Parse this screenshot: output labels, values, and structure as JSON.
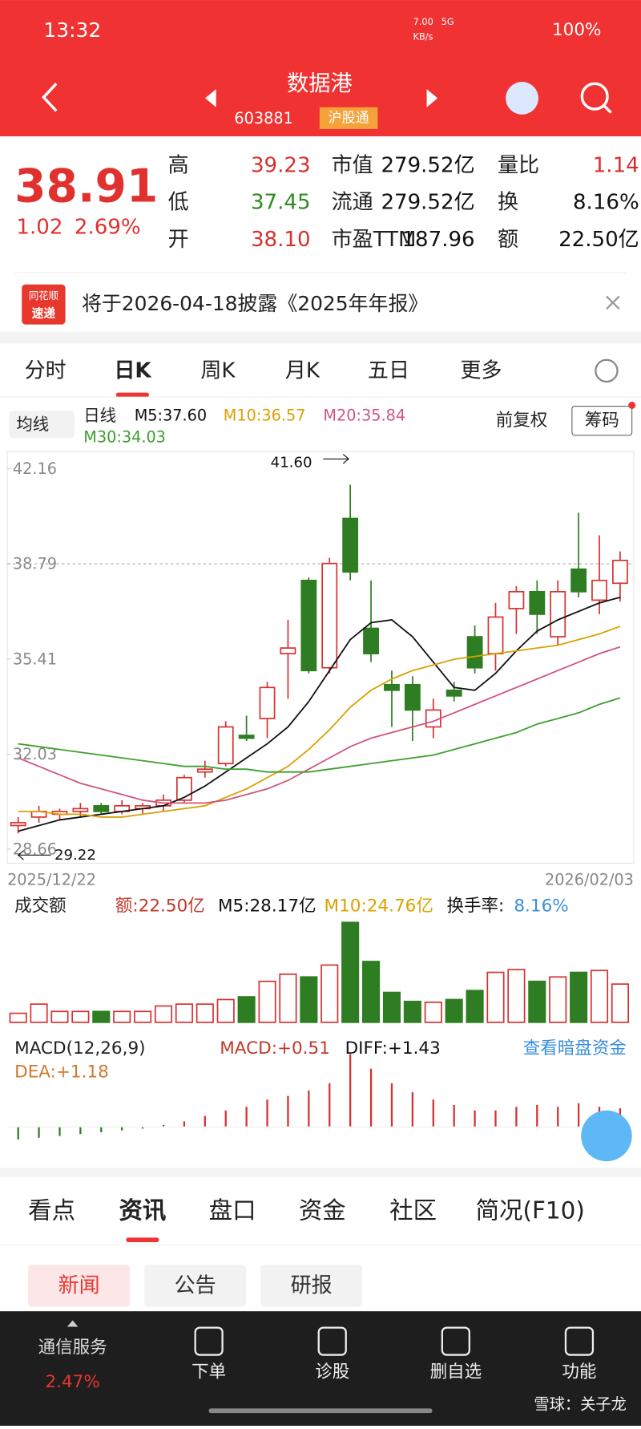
{
  "status_bar": {
    "time": "13:32",
    "speed": "7.00",
    "speed_unit": "KB/s",
    "network": "5G",
    "battery": "100%"
  },
  "header": {
    "title": "数据港",
    "code": "603881",
    "badge": "沪股通"
  },
  "quote": {
    "price": "38.91",
    "change": "1.02",
    "change_pct": "2.69%",
    "stats": [
      [
        {
          "label": "高",
          "value": "39.23",
          "tone": "up"
        },
        {
          "label": "低",
          "value": "37.45",
          "tone": "down"
        },
        {
          "label": "开",
          "value": "38.10",
          "tone": "up"
        }
      ],
      [
        {
          "label": "市值",
          "value": "279.52亿",
          "tone": "flat"
        },
        {
          "label": "流通",
          "value": "279.52亿",
          "tone": "flat"
        },
        {
          "label": "市盈TTM",
          "value": "187.96",
          "tone": "flat"
        }
      ],
      [
        {
          "label": "量比",
          "value": "1.14",
          "tone": "up"
        },
        {
          "label": "换",
          "value": "8.16%",
          "tone": "flat"
        },
        {
          "label": "额",
          "value": "22.50亿",
          "tone": "flat"
        }
      ]
    ]
  },
  "notice": {
    "logo_top": "同花顺",
    "logo_bottom": "速递",
    "text": "将于2026-04-18披露《2025年年报》"
  },
  "period_tabs": {
    "items": [
      "分时",
      "日K",
      "周K",
      "月K",
      "五日",
      "更多"
    ],
    "active": 1
  },
  "chart_header": {
    "ma_selector": "均线",
    "period": "日线",
    "adjust": "前复权",
    "chips": "筹码"
  },
  "chart_data": {
    "type": "candlestick",
    "categories": [
      "2025/12/22",
      null,
      null,
      null,
      null,
      null,
      null,
      null,
      null,
      null,
      null,
      null,
      null,
      null,
      null,
      null,
      null,
      null,
      null,
      null,
      null,
      null,
      null,
      null,
      null,
      null,
      null,
      null,
      null,
      "2026/02/03"
    ],
    "open": [
      29.5,
      29.8,
      29.9,
      30.0,
      30.2,
      30.0,
      30.1,
      30.2,
      30.4,
      31.4,
      31.7,
      32.7,
      33.3,
      35.6,
      38.2,
      35.1,
      40.4,
      36.5,
      34.5,
      34.5,
      33.0,
      34.3,
      36.2,
      35.6,
      37.2,
      37.8,
      36.2,
      38.6,
      37.5,
      38.1
    ],
    "high": [
      29.8,
      30.2,
      30.1,
      30.3,
      30.3,
      30.4,
      30.3,
      30.6,
      31.3,
      31.8,
      33.2,
      33.4,
      34.6,
      36.8,
      38.3,
      39.0,
      41.6,
      38.2,
      35.0,
      34.8,
      34.0,
      34.6,
      36.6,
      37.4,
      38.0,
      38.2,
      38.2,
      40.6,
      39.8,
      39.23
    ],
    "low": [
      29.22,
      29.6,
      29.7,
      29.8,
      29.9,
      29.9,
      29.9,
      30.0,
      30.3,
      31.2,
      31.6,
      32.5,
      32.6,
      34.0,
      34.9,
      34.9,
      38.2,
      35.3,
      33.0,
      32.5,
      32.6,
      33.9,
      34.9,
      35.0,
      36.3,
      36.3,
      35.9,
      37.6,
      37.0,
      37.45
    ],
    "close": [
      29.6,
      30.0,
      30.0,
      30.1,
      30.0,
      30.2,
      30.2,
      30.4,
      31.2,
      31.5,
      33.0,
      32.6,
      34.4,
      35.8,
      35.0,
      38.8,
      38.5,
      35.6,
      34.3,
      33.6,
      33.6,
      34.1,
      35.1,
      36.9,
      37.8,
      37.0,
      37.8,
      37.8,
      38.2,
      38.91
    ],
    "ma": [
      {
        "name": "M5:37.60",
        "color": "#111111",
        "values": [
          29.3,
          29.5,
          29.7,
          29.8,
          29.9,
          30.0,
          30.1,
          30.2,
          30.5,
          30.9,
          31.4,
          31.9,
          32.4,
          33.0,
          33.9,
          35.0,
          36.1,
          36.7,
          36.8,
          36.2,
          35.3,
          34.4,
          34.3,
          34.9,
          35.7,
          36.4,
          36.8,
          37.1,
          37.4,
          37.6
        ]
      },
      {
        "name": "M10:36.57",
        "color": "#d9a200",
        "values": [
          30.0,
          30.0,
          29.9,
          29.9,
          29.8,
          29.8,
          29.9,
          30.0,
          30.1,
          30.2,
          30.5,
          30.8,
          31.2,
          31.6,
          32.2,
          32.9,
          33.7,
          34.3,
          34.7,
          35.0,
          35.2,
          35.4,
          35.5,
          35.6,
          35.7,
          35.8,
          35.9,
          36.1,
          36.3,
          36.57
        ]
      },
      {
        "name": "M20:35.84",
        "color": "#d0567a",
        "values": [
          31.9,
          31.6,
          31.3,
          31.0,
          30.8,
          30.6,
          30.4,
          30.3,
          30.3,
          30.3,
          30.4,
          30.6,
          30.8,
          31.1,
          31.5,
          31.9,
          32.3,
          32.6,
          32.8,
          33.0,
          33.2,
          33.5,
          33.8,
          34.1,
          34.4,
          34.7,
          35.0,
          35.3,
          35.6,
          35.84
        ]
      },
      {
        "name": "M30:34.03",
        "color": "#3f9f2f",
        "values": [
          32.4,
          32.3,
          32.2,
          32.1,
          32.0,
          31.9,
          31.8,
          31.7,
          31.6,
          31.6,
          31.5,
          31.5,
          31.4,
          31.4,
          31.4,
          31.5,
          31.6,
          31.7,
          31.8,
          31.9,
          32.0,
          32.2,
          32.4,
          32.6,
          32.8,
          33.1,
          33.3,
          33.5,
          33.8,
          34.03
        ]
      }
    ],
    "ylim": [
      28.16,
      42.77
    ],
    "yticks": [
      42.16,
      38.79,
      35.41,
      32.03,
      28.66
    ],
    "grid": false,
    "annotations": [
      "41.60",
      "29.22"
    ],
    "up_color": "#d6312f",
    "down_color": "#2e7d22",
    "volume": [
      5.3,
      10.7,
      6.4,
      6.4,
      6.4,
      6.4,
      6.4,
      9.6,
      10.7,
      10.7,
      13.4,
      15.0,
      24.1,
      28.3,
      26.7,
      33.7,
      58.8,
      35.8,
      17.6,
      12.3,
      11.8,
      13.4,
      18.7,
      29.4,
      31.0,
      24.1,
      26.7,
      29.4,
      30.5,
      22.5
    ],
    "macd": [
      -0.35,
      -0.3,
      -0.25,
      -0.2,
      -0.15,
      -0.1,
      -0.05,
      0.05,
      0.15,
      0.3,
      0.45,
      0.55,
      0.75,
      0.85,
      1.0,
      1.2,
      2.0,
      1.6,
      1.2,
      0.95,
      0.75,
      0.6,
      0.45,
      0.45,
      0.55,
      0.6,
      0.55,
      0.65,
      0.55,
      0.51
    ]
  },
  "volume_panel": {
    "title": "成交额",
    "amount": "额:22.50亿",
    "m5": "M5:28.17亿",
    "m10": "M10:24.76亿",
    "turnover_label": "换手率:",
    "turnover": "8.16%"
  },
  "macd_panel": {
    "title": "MACD(12,26,9)",
    "macd": "MACD:+0.51",
    "diff": "DIFF:+1.43",
    "dea": "DEA:+1.18",
    "link": "查看暗盘资金"
  },
  "info_tabs": {
    "items": [
      "看点",
      "资讯",
      "盘口",
      "资金",
      "社区",
      "简况(F10)"
    ],
    "active": 1
  },
  "sub_tabs": {
    "items": [
      "新闻",
      "公告",
      "研报"
    ],
    "active": 0
  },
  "bottom_nav": {
    "sector": "通信服务",
    "sector_change": "2.47%",
    "items": [
      "下单",
      "诊股",
      "删自选",
      "功能"
    ]
  },
  "watermark": "雪球：关子龙"
}
